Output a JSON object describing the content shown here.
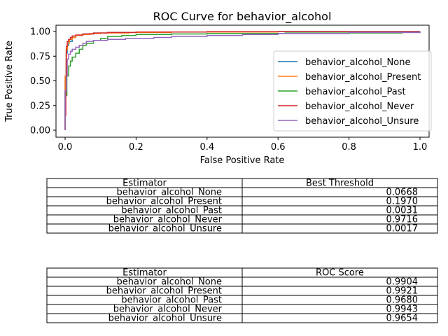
{
  "chart_data": [
    {
      "type": "line",
      "title": "ROC Curve for behavior_alcohol",
      "xlabel": "False Positive Rate",
      "ylabel": "True Positive Rate",
      "xlim": [
        0,
        1
      ],
      "ylim": [
        0,
        1
      ],
      "x_ticks": [
        "0.0",
        "0.2",
        "0.4",
        "0.6",
        "0.8",
        "1.0"
      ],
      "y_ticks": [
        "0.00",
        "0.25",
        "0.50",
        "0.75",
        "1.00"
      ],
      "grid": false,
      "legend_position": "lower-right",
      "series": [
        {
          "name": "behavior_alcohol_None",
          "color": "#1f77b4",
          "points": [
            [
              0,
              0
            ],
            [
              0,
              0.5
            ],
            [
              0.003,
              0.78
            ],
            [
              0.006,
              0.86
            ],
            [
              0.01,
              0.9
            ],
            [
              0.02,
              0.94
            ],
            [
              0.03,
              0.96
            ],
            [
              0.05,
              0.975
            ],
            [
              0.08,
              0.985
            ],
            [
              0.12,
              0.99
            ],
            [
              0.2,
              0.995
            ],
            [
              0.4,
              0.998
            ],
            [
              0.6,
              1.0
            ],
            [
              1.0,
              1.0
            ]
          ]
        },
        {
          "name": "behavior_alcohol_Present",
          "color": "#ff7f0e",
          "points": [
            [
              0,
              0
            ],
            [
              0,
              0.55
            ],
            [
              0.003,
              0.82
            ],
            [
              0.007,
              0.88
            ],
            [
              0.012,
              0.92
            ],
            [
              0.02,
              0.94
            ],
            [
              0.03,
              0.96
            ],
            [
              0.05,
              0.97
            ],
            [
              0.07,
              0.98
            ],
            [
              0.1,
              0.985
            ],
            [
              0.18,
              0.99
            ],
            [
              0.3,
              0.995
            ],
            [
              0.6,
              0.998
            ],
            [
              1.0,
              1.0
            ]
          ]
        },
        {
          "name": "behavior_alcohol_Past",
          "color": "#2ca02c",
          "points": [
            [
              0,
              0
            ],
            [
              0,
              0.35
            ],
            [
              0.005,
              0.55
            ],
            [
              0.01,
              0.65
            ],
            [
              0.015,
              0.7
            ],
            [
              0.02,
              0.74
            ],
            [
              0.03,
              0.78
            ],
            [
              0.04,
              0.82
            ],
            [
              0.05,
              0.86
            ],
            [
              0.06,
              0.88
            ],
            [
              0.08,
              0.91
            ],
            [
              0.1,
              0.93
            ],
            [
              0.12,
              0.95
            ],
            [
              0.16,
              0.96
            ],
            [
              0.2,
              0.97
            ],
            [
              0.3,
              0.975
            ],
            [
              0.4,
              0.98
            ],
            [
              0.5,
              0.98
            ],
            [
              0.62,
              0.985
            ],
            [
              0.8,
              0.985
            ],
            [
              0.95,
              0.99
            ],
            [
              1.0,
              1.0
            ]
          ]
        },
        {
          "name": "behavior_alcohol_Never",
          "color": "#d62728",
          "points": [
            [
              0,
              0
            ],
            [
              0,
              0.15
            ],
            [
              0.002,
              0.4
            ],
            [
              0.003,
              0.7
            ],
            [
              0.004,
              0.85
            ],
            [
              0.006,
              0.9
            ],
            [
              0.01,
              0.92
            ],
            [
              0.015,
              0.94
            ],
            [
              0.02,
              0.955
            ],
            [
              0.03,
              0.965
            ],
            [
              0.05,
              0.975
            ],
            [
              0.08,
              0.985
            ],
            [
              0.12,
              0.99
            ],
            [
              0.2,
              0.995
            ],
            [
              0.4,
              0.998
            ],
            [
              1.0,
              1.0
            ]
          ]
        },
        {
          "name": "behavior_alcohol_Unsure",
          "color": "#9467bd",
          "points": [
            [
              0,
              0
            ],
            [
              0,
              0.4
            ],
            [
              0.004,
              0.55
            ],
            [
              0.006,
              0.72
            ],
            [
              0.01,
              0.77
            ],
            [
              0.015,
              0.8
            ],
            [
              0.02,
              0.82
            ],
            [
              0.03,
              0.84
            ],
            [
              0.04,
              0.86
            ],
            [
              0.05,
              0.88
            ],
            [
              0.06,
              0.9
            ],
            [
              0.08,
              0.91
            ],
            [
              0.12,
              0.92
            ],
            [
              0.17,
              0.93
            ],
            [
              0.25,
              0.94
            ],
            [
              0.3,
              0.95
            ],
            [
              0.4,
              0.96
            ],
            [
              0.5,
              0.97
            ],
            [
              0.6,
              0.98
            ],
            [
              0.8,
              0.99
            ],
            [
              1.0,
              1.0
            ]
          ]
        }
      ]
    },
    {
      "type": "table",
      "columns": [
        "Estimator",
        "Best Threshold"
      ],
      "rows": [
        [
          "behavior_alcohol_None",
          "0.0668"
        ],
        [
          "behavior_alcohol_Present",
          "0.1970"
        ],
        [
          "behavior_alcohol_Past",
          "0.0031"
        ],
        [
          "behavior_alcohol_Never",
          "0.9716"
        ],
        [
          "behavior_alcohol_Unsure",
          "0.0017"
        ]
      ]
    },
    {
      "type": "table",
      "columns": [
        "Estimator",
        "ROC Score"
      ],
      "rows": [
        [
          "behavior_alcohol_None",
          "0.9904"
        ],
        [
          "behavior_alcohol_Present",
          "0.9921"
        ],
        [
          "behavior_alcohol_Past",
          "0.9680"
        ],
        [
          "behavior_alcohol_Never",
          "0.9943"
        ],
        [
          "behavior_alcohol_Unsure",
          "0.9654"
        ]
      ]
    }
  ]
}
